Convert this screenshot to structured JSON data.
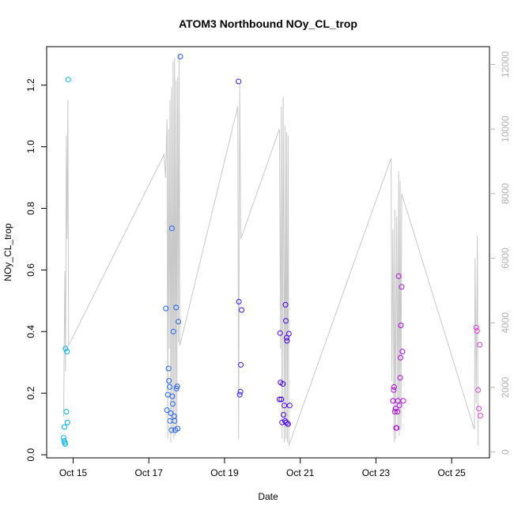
{
  "chart_data": {
    "type": "scatter",
    "title": "ATOM3 Northbound NOy_CL_trop",
    "xlabel": "Date",
    "ylabel": "NOy_CL_trop",
    "y2label": "",
    "xlim": [
      14.3,
      26.0
    ],
    "ylim": [
      -0.01,
      1.325
    ],
    "y2lim": [
      -180,
      12550
    ],
    "x_ticks": [
      {
        "value": 15,
        "label": "Oct 15"
      },
      {
        "value": 17,
        "label": "Oct 17"
      },
      {
        "value": 19,
        "label": "Oct 19"
      },
      {
        "value": 21,
        "label": "Oct 21"
      },
      {
        "value": 23,
        "label": "Oct 23"
      },
      {
        "value": 25,
        "label": "Oct 25"
      }
    ],
    "y_ticks": [
      0.0,
      0.2,
      0.4,
      0.6,
      0.8,
      1.0,
      1.2
    ],
    "y_tick_labels": [
      "0.0",
      "0.2",
      "0.4",
      "0.6",
      "0.8",
      "1.0",
      "1.2"
    ],
    "y2_ticks": [
      0,
      2000,
      4000,
      6000,
      8000,
      10000,
      12000
    ],
    "y2_tick_labels": [
      "0",
      "2000",
      "4000",
      "6000",
      "8000",
      "10000",
      "12000"
    ],
    "grid": false,
    "legend": "none",
    "colors": {
      "altitude_line": "#c8c8c8",
      "point_gradient": [
        "#00b4f0",
        "#1e64f0",
        "#3c00e6",
        "#a000dc",
        "#e63cdc"
      ]
    },
    "series": [
      {
        "type": "line",
        "axis": "right",
        "points": [
          [
            14.75,
            1100
          ],
          [
            14.78,
            5600
          ],
          [
            14.8,
            2500
          ],
          [
            14.82,
            9800
          ],
          [
            14.84,
            6600
          ],
          [
            14.86,
            10900
          ],
          [
            14.88,
            3300
          ],
          [
            17.4,
            9200
          ],
          [
            17.44,
            8500
          ],
          [
            17.48,
            10300
          ],
          [
            17.5,
            400
          ],
          [
            17.52,
            10000
          ],
          [
            17.54,
            3200
          ],
          [
            17.56,
            10900
          ],
          [
            17.58,
            300
          ],
          [
            17.6,
            11300
          ],
          [
            17.62,
            600
          ],
          [
            17.64,
            12100
          ],
          [
            17.66,
            400
          ],
          [
            17.68,
            12200
          ],
          [
            17.7,
            500
          ],
          [
            17.72,
            11500
          ],
          [
            17.74,
            800
          ],
          [
            17.76,
            11600
          ],
          [
            17.78,
            3400
          ],
          [
            17.8,
            12300
          ],
          [
            17.82,
            3300
          ],
          [
            19.35,
            10700
          ],
          [
            19.37,
            400
          ],
          [
            19.4,
            11400
          ],
          [
            19.43,
            6600
          ],
          [
            20.45,
            10000
          ],
          [
            20.48,
            3200
          ],
          [
            20.5,
            10700
          ],
          [
            20.52,
            400
          ],
          [
            20.55,
            11000
          ],
          [
            20.58,
            300
          ],
          [
            20.6,
            10100
          ],
          [
            20.62,
            400
          ],
          [
            20.64,
            9900
          ],
          [
            20.66,
            300
          ],
          [
            20.68,
            9800
          ],
          [
            20.7,
            200
          ],
          [
            23.4,
            9100
          ],
          [
            23.42,
            2200
          ],
          [
            23.45,
            6900
          ],
          [
            23.48,
            300
          ],
          [
            23.5,
            7500
          ],
          [
            23.52,
            400
          ],
          [
            23.55,
            7300
          ],
          [
            23.58,
            800
          ],
          [
            23.6,
            8700
          ],
          [
            23.62,
            500
          ],
          [
            23.64,
            8400
          ],
          [
            23.66,
            700
          ],
          [
            23.68,
            8000
          ],
          [
            25.6,
            700
          ],
          [
            25.62,
            6000
          ],
          [
            25.65,
            1500
          ],
          [
            25.68,
            6700
          ],
          [
            25.7,
            200
          ]
        ]
      },
      {
        "type": "scatter",
        "axis": "left",
        "points": [
          [
            14.75,
            0.055
          ],
          [
            14.76,
            0.045
          ],
          [
            14.77,
            0.09
          ],
          [
            14.78,
            0.04
          ],
          [
            14.79,
            0.035
          ],
          [
            14.8,
            0.345
          ],
          [
            14.82,
            0.14
          ],
          [
            14.84,
            0.335
          ],
          [
            14.85,
            0.105
          ],
          [
            14.87,
            1.218
          ],
          [
            17.45,
            0.475
          ],
          [
            17.48,
            0.145
          ],
          [
            17.5,
            0.195
          ],
          [
            17.52,
            0.28
          ],
          [
            17.53,
            0.24
          ],
          [
            17.55,
            0.22
          ],
          [
            17.56,
            0.11
          ],
          [
            17.58,
            0.135
          ],
          [
            17.6,
            0.08
          ],
          [
            17.61,
            0.735
          ],
          [
            17.62,
            0.19
          ],
          [
            17.63,
            0.165
          ],
          [
            17.65,
            0.4
          ],
          [
            17.67,
            0.125
          ],
          [
            17.68,
            0.11
          ],
          [
            17.7,
            0.08
          ],
          [
            17.72,
            0.478
          ],
          [
            17.73,
            0.215
          ],
          [
            17.75,
            0.222
          ],
          [
            17.76,
            0.085
          ],
          [
            17.78,
            0.432
          ],
          [
            17.83,
            1.293
          ],
          [
            19.37,
            1.212
          ],
          [
            19.38,
            0.497
          ],
          [
            19.4,
            0.195
          ],
          [
            19.42,
            0.205
          ],
          [
            19.43,
            0.292
          ],
          [
            19.45,
            0.47
          ],
          [
            20.45,
            0.18
          ],
          [
            20.47,
            0.395
          ],
          [
            20.48,
            0.235
          ],
          [
            20.5,
            0.18
          ],
          [
            20.52,
            0.105
          ],
          [
            20.54,
            0.23
          ],
          [
            20.56,
            0.13
          ],
          [
            20.58,
            0.16
          ],
          [
            20.6,
            0.11
          ],
          [
            20.61,
            0.487
          ],
          [
            20.62,
            0.435
          ],
          [
            20.63,
            0.105
          ],
          [
            20.64,
            0.38
          ],
          [
            20.65,
            0.37
          ],
          [
            20.67,
            0.1
          ],
          [
            20.68,
            0.1
          ],
          [
            20.7,
            0.393
          ],
          [
            20.72,
            0.16
          ],
          [
            23.45,
            0.175
          ],
          [
            23.47,
            0.21
          ],
          [
            23.48,
            0.22
          ],
          [
            23.5,
            0.14
          ],
          [
            23.52,
            0.15
          ],
          [
            23.53,
            0.087
          ],
          [
            23.55,
            0.087
          ],
          [
            23.57,
            0.14
          ],
          [
            23.58,
            0.175
          ],
          [
            23.6,
            0.58
          ],
          [
            23.62,
            0.16
          ],
          [
            23.64,
            0.25
          ],
          [
            23.65,
            0.315
          ],
          [
            23.66,
            0.42
          ],
          [
            23.68,
            0.545
          ],
          [
            23.7,
            0.335
          ],
          [
            23.72,
            0.175
          ],
          [
            25.65,
            0.413
          ],
          [
            25.67,
            0.402
          ],
          [
            25.7,
            0.21
          ],
          [
            25.72,
            0.15
          ],
          [
            25.74,
            0.357
          ],
          [
            25.76,
            0.127
          ]
        ]
      }
    ]
  }
}
